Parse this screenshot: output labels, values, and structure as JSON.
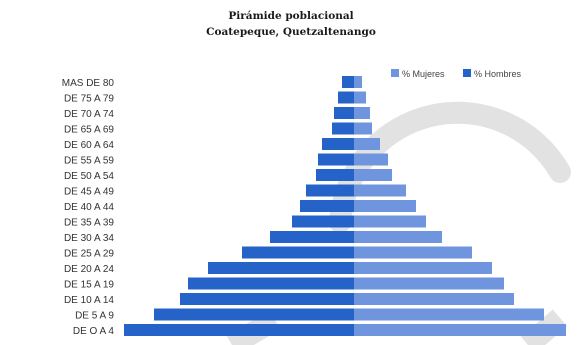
{
  "chart_data": {
    "type": "bar",
    "orientation": "horizontal-population-pyramid",
    "title": "Pirámide poblacional",
    "subtitle": "Coatepeque, Quetzaltenango",
    "categories": [
      "MAS DE 80",
      "DE 75 A 79",
      "DE 70 A 74",
      "DE 65 A 69",
      "DE 60 A 64",
      "DE 55 A 59",
      "DE 50 A 54",
      "DE 45 A 49",
      "DE 40 A 44",
      "DE 35 A 39",
      "DE 30 A 34",
      "DE 25 A 29",
      "DE 20 A 24",
      "DE 15 A 19",
      "DE 10 A 14",
      "DE 5 A 9",
      "DE O A 4"
    ],
    "series": [
      {
        "name": "% Hombres",
        "color": "#2563c9",
        "side": "left",
        "values": [
          0.6,
          0.8,
          1.0,
          1.1,
          1.6,
          1.8,
          1.9,
          2.4,
          2.7,
          3.1,
          4.2,
          5.6,
          7.3,
          8.3,
          8.7,
          10.0,
          11.5
        ]
      },
      {
        "name": "% Mujeres",
        "color": "#6f95de",
        "side": "right",
        "values": [
          0.4,
          0.6,
          0.8,
          0.9,
          1.3,
          1.7,
          1.9,
          2.6,
          3.1,
          3.6,
          4.4,
          5.9,
          6.9,
          7.5,
          8.0,
          9.5,
          10.6
        ]
      }
    ],
    "legend_position": "top-right",
    "grid": false
  }
}
